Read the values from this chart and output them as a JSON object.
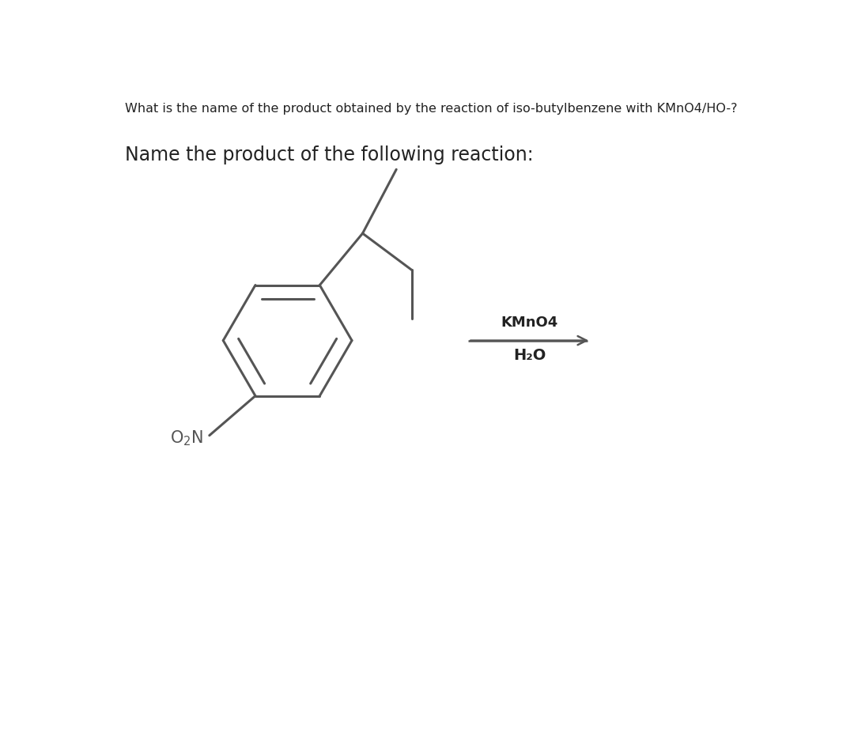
{
  "title_text": "What is the name of the product obtained by the reaction of iso-butylbenzene with KMnO4/HO-?",
  "subtitle_text": "Name the product of the following reaction:",
  "reagent_above": "KMnO4",
  "reagent_below": "H₂O",
  "bg_color": "#ffffff",
  "line_color": "#555555",
  "text_color": "#222222",
  "title_fontsize": 11.5,
  "subtitle_fontsize": 17,
  "reagent_fontsize": 13,
  "label_fontsize": 15
}
